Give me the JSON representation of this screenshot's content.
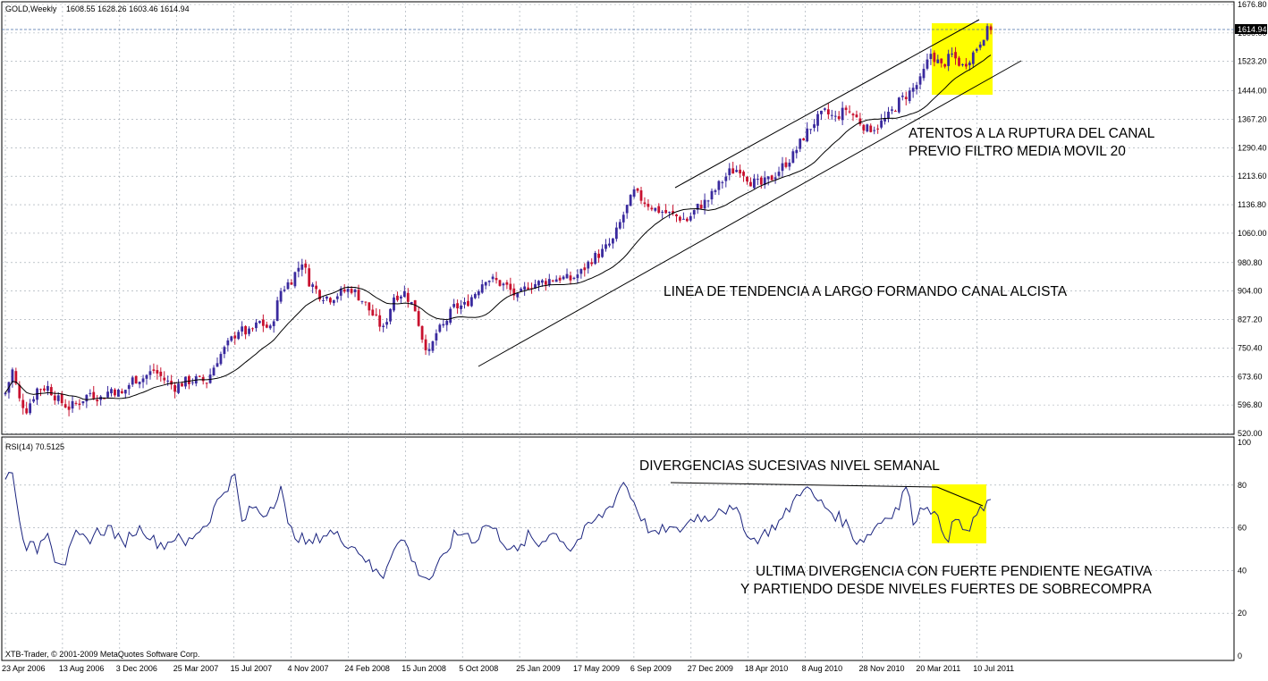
{
  "header": {
    "symbol": "GOLD,Weekly",
    "ohlc": "1608.55 1628.26 1603.46 1614.94",
    "rsi_label": "RSI(14) 70.5125",
    "copyright": "XTB-Trader, © 2001-2009 MetaQuotes Software Corp."
  },
  "chart_data": [
    {
      "type": "candlestick",
      "symbol": "GOLD",
      "timeframe": "Weekly",
      "price_ticks": [
        "1676.80",
        "1600.00",
        "1523.20",
        "1444.00",
        "1367.20",
        "1290.40",
        "1213.60",
        "1136.80",
        "1060.00",
        "980.80",
        "904.00",
        "827.20",
        "750.40",
        "673.60",
        "596.80",
        "520.00"
      ],
      "current_price": "1614.94",
      "x_tick_labels": [
        "23 Apr 2006",
        "13 Aug 2006",
        "3 Dec 2006",
        "25 Mar 2007",
        "15 Jul 2007",
        "4 Nov 2007",
        "24 Feb 2008",
        "15 Jun 2008",
        "5 Oct 2008",
        "25 Jan 2009",
        "17 May 2009",
        "6 Sep 2009",
        "27 Dec 2009",
        "18 Apr 2010",
        "8 Aug 2010",
        "28 Nov 2010",
        "20 Mar 2011",
        "10 Jul 2011"
      ],
      "ylim": [
        520,
        1676.8
      ],
      "grid": true,
      "up_color": "#3a2a9e",
      "down_color": "#c8102e",
      "ma_color": "#000000",
      "close_anchors": [
        [
          0,
          630
        ],
        [
          2,
          690
        ],
        [
          4,
          610
        ],
        [
          6,
          585
        ],
        [
          9,
          640
        ],
        [
          12,
          645
        ],
        [
          15,
          610
        ],
        [
          18,
          590
        ],
        [
          21,
          605
        ],
        [
          24,
          630
        ],
        [
          27,
          615
        ],
        [
          30,
          640
        ],
        [
          33,
          625
        ],
        [
          36,
          665
        ],
        [
          39,
          670
        ],
        [
          42,
          690
        ],
        [
          45,
          665
        ],
        [
          48,
          645
        ],
        [
          51,
          660
        ],
        [
          54,
          665
        ],
        [
          57,
          660
        ],
        [
          60,
          720
        ],
        [
          63,
          760
        ],
        [
          66,
          800
        ],
        [
          69,
          790
        ],
        [
          72,
          820
        ],
        [
          75,
          800
        ],
        [
          78,
          905
        ],
        [
          81,
          935
        ],
        [
          84,
          985
        ],
        [
          86,
          930
        ],
        [
          89,
          895
        ],
        [
          92,
          885
        ],
        [
          95,
          900
        ],
        [
          98,
          910
        ],
        [
          101,
          880
        ],
        [
          104,
          840
        ],
        [
          107,
          800
        ],
        [
          110,
          890
        ],
        [
          113,
          900
        ],
        [
          116,
          855
        ],
        [
          118,
          780
        ],
        [
          120,
          735
        ],
        [
          122,
          790
        ],
        [
          124,
          810
        ],
        [
          127,
          860
        ],
        [
          130,
          865
        ],
        [
          133,
          900
        ],
        [
          136,
          940
        ],
        [
          139,
          930
        ],
        [
          142,
          915
        ],
        [
          145,
          885
        ],
        [
          148,
          920
        ],
        [
          151,
          925
        ],
        [
          154,
          935
        ],
        [
          157,
          940
        ],
        [
          160,
          935
        ],
        [
          163,
          955
        ],
        [
          166,
          990
        ],
        [
          169,
          1010
        ],
        [
          172,
          1040
        ],
        [
          175,
          1110
        ],
        [
          178,
          1170
        ],
        [
          181,
          1145
        ],
        [
          184,
          1125
        ],
        [
          187,
          1115
        ],
        [
          190,
          1105
        ],
        [
          193,
          1095
        ],
        [
          196,
          1130
        ],
        [
          199,
          1150
        ],
        [
          202,
          1190
        ],
        [
          205,
          1225
        ],
        [
          208,
          1235
        ],
        [
          211,
          1200
        ],
        [
          214,
          1190
        ],
        [
          217,
          1210
        ],
        [
          220,
          1240
        ],
        [
          223,
          1270
        ],
        [
          226,
          1320
        ],
        [
          229,
          1360
        ],
        [
          232,
          1385
        ],
        [
          235,
          1370
        ],
        [
          238,
          1395
        ],
        [
          241,
          1370
        ],
        [
          244,
          1340
        ],
        [
          247,
          1350
        ],
        [
          250,
          1375
        ],
        [
          253,
          1415
        ],
        [
          256,
          1440
        ],
        [
          259,
          1470
        ],
        [
          262,
          1545
        ],
        [
          265,
          1510
        ],
        [
          268,
          1540
        ],
        [
          271,
          1510
        ],
        [
          274,
          1545
        ],
        [
          277,
          1595
        ],
        [
          279,
          1615
        ]
      ],
      "annotations": [
        "ATENTOS A LA RUPTURA DEL CANAL",
        "PREVIO FILTRO MEDIA MOVIL 20",
        "LINEA DE TENDENCIA A LARGO FORMANDO CANAL ALCISTA"
      ],
      "highlight_color": "#ffff00"
    },
    {
      "type": "line",
      "name": "RSI(14)",
      "value": 70.5125,
      "ylim": [
        0,
        100
      ],
      "y_ticks": [
        "100",
        "80",
        "60",
        "40",
        "20",
        "0"
      ],
      "color": "#1a237e",
      "values_anchors": [
        [
          0,
          82
        ],
        [
          2,
          88
        ],
        [
          4,
          62
        ],
        [
          6,
          52
        ],
        [
          9,
          50
        ],
        [
          12,
          60
        ],
        [
          14,
          46
        ],
        [
          17,
          44
        ],
        [
          20,
          56
        ],
        [
          23,
          54
        ],
        [
          26,
          58
        ],
        [
          30,
          60
        ],
        [
          33,
          52
        ],
        [
          36,
          58
        ],
        [
          39,
          60
        ],
        [
          42,
          54
        ],
        [
          45,
          52
        ],
        [
          48,
          56
        ],
        [
          51,
          52
        ],
        [
          54,
          58
        ],
        [
          57,
          62
        ],
        [
          60,
          72
        ],
        [
          62,
          78
        ],
        [
          65,
          84
        ],
        [
          67,
          62
        ],
        [
          70,
          70
        ],
        [
          73,
          66
        ],
        [
          76,
          72
        ],
        [
          78,
          80
        ],
        [
          80,
          60
        ],
        [
          83,
          56
        ],
        [
          86,
          52
        ],
        [
          89,
          56
        ],
        [
          92,
          58
        ],
        [
          95,
          55
        ],
        [
          98,
          52
        ],
        [
          101,
          48
        ],
        [
          104,
          40
        ],
        [
          107,
          38
        ],
        [
          110,
          52
        ],
        [
          113,
          54
        ],
        [
          116,
          42
        ],
        [
          118,
          38
        ],
        [
          120,
          36
        ],
        [
          122,
          40
        ],
        [
          124,
          46
        ],
        [
          127,
          56
        ],
        [
          130,
          58
        ],
        [
          133,
          54
        ],
        [
          136,
          62
        ],
        [
          139,
          58
        ],
        [
          142,
          52
        ],
        [
          145,
          48
        ],
        [
          148,
          56
        ],
        [
          151,
          52
        ],
        [
          154,
          58
        ],
        [
          157,
          56
        ],
        [
          160,
          50
        ],
        [
          163,
          56
        ],
        [
          166,
          62
        ],
        [
          169,
          66
        ],
        [
          172,
          72
        ],
        [
          175,
          82
        ],
        [
          178,
          72
        ],
        [
          181,
          62
        ],
        [
          184,
          56
        ],
        [
          187,
          60
        ],
        [
          190,
          58
        ],
        [
          193,
          62
        ],
        [
          196,
          66
        ],
        [
          199,
          64
        ],
        [
          202,
          70
        ],
        [
          205,
          68
        ],
        [
          208,
          66
        ],
        [
          211,
          54
        ],
        [
          214,
          56
        ],
        [
          217,
          60
        ],
        [
          220,
          64
        ],
        [
          223,
          72
        ],
        [
          226,
          80
        ],
        [
          229,
          74
        ],
        [
          232,
          70
        ],
        [
          235,
          66
        ],
        [
          238,
          62
        ],
        [
          241,
          54
        ],
        [
          244,
          56
        ],
        [
          247,
          62
        ],
        [
          250,
          66
        ],
        [
          253,
          70
        ],
        [
          255,
          80
        ],
        [
          257,
          64
        ],
        [
          259,
          68
        ],
        [
          261,
          72
        ],
        [
          263,
          66
        ],
        [
          265,
          60
        ],
        [
          267,
          56
        ],
        [
          269,
          64
        ],
        [
          271,
          60
        ],
        [
          273,
          58
        ],
        [
          275,
          66
        ],
        [
          277,
          70
        ],
        [
          279,
          70.5
        ]
      ],
      "annotations": [
        "DIVERGENCIAS SUCESIVAS NIVEL SEMANAL",
        "ULTIMA DIVERGENCIA CON FUERTE PENDIENTE NEGATIVA",
        "Y PARTIENDO DESDE NIVELES FUERTES DE SOBRECOMPRA"
      ]
    }
  ]
}
